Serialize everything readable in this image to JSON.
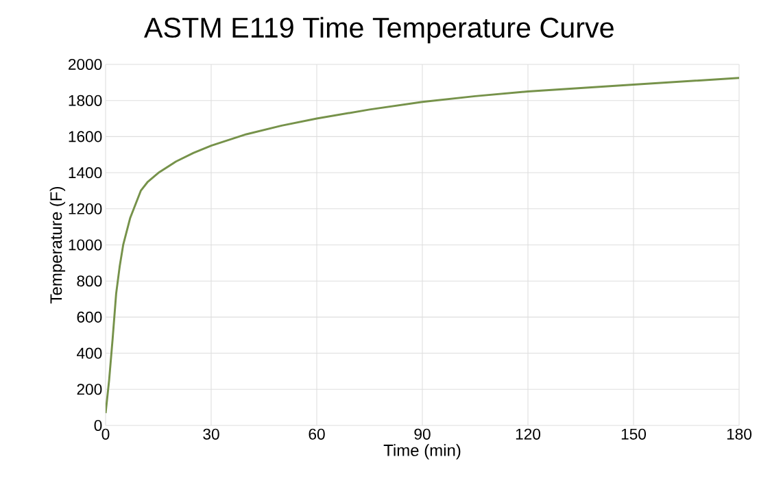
{
  "chart_data": {
    "type": "line",
    "title": "ASTM E119 Time Temperature Curve",
    "xlabel": "Time (min)",
    "ylabel": "Temperature (F)",
    "x": [
      0,
      1,
      2,
      3,
      4,
      5,
      7,
      10,
      12,
      15,
      20,
      25,
      30,
      40,
      50,
      60,
      75,
      90,
      105,
      120,
      150,
      180
    ],
    "series": [
      {
        "color": "#76924a",
        "values": [
          68,
          250,
          480,
          730,
          880,
          1000,
          1150,
          1300,
          1350,
          1399,
          1462,
          1510,
          1550,
          1613,
          1661,
          1700,
          1750,
          1792,
          1824,
          1850,
          1888,
          1925
        ]
      }
    ],
    "xlim": [
      0,
      180
    ],
    "ylim": [
      0,
      2000
    ],
    "xticks": [
      0,
      30,
      60,
      90,
      120,
      150,
      180
    ],
    "yticks": [
      0,
      200,
      400,
      600,
      800,
      1000,
      1200,
      1400,
      1600,
      1800,
      2000
    ],
    "grid": true,
    "marker": "none",
    "line_style": "solid"
  }
}
